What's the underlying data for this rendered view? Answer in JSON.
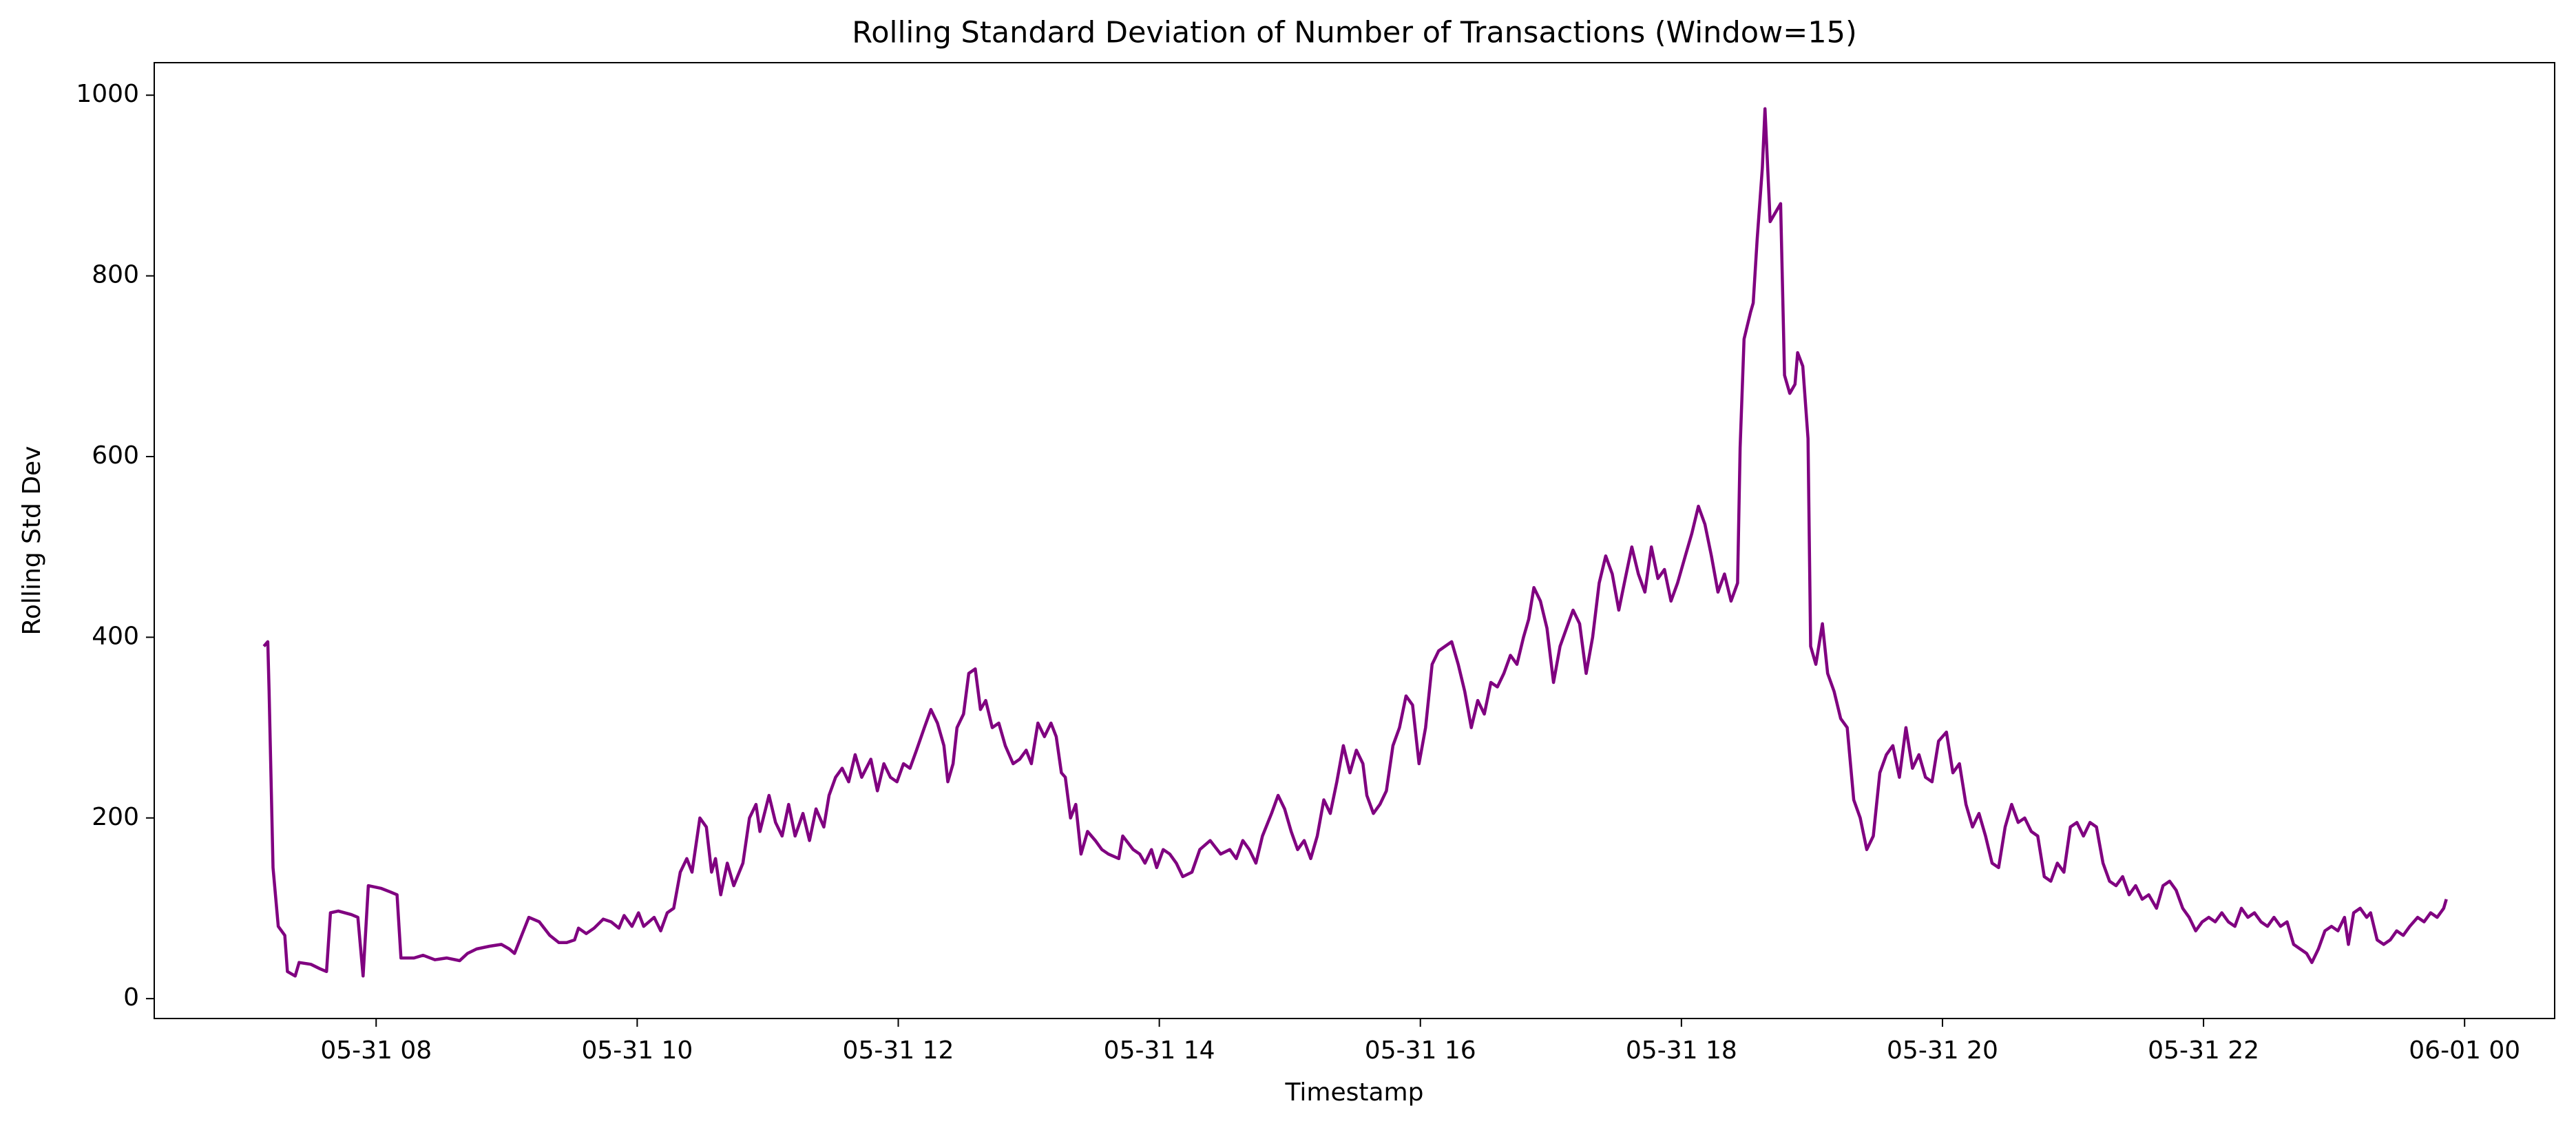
{
  "chart_data": {
    "type": "line",
    "title": "Rolling Standard Deviation of Number of Transactions (Window=15)",
    "x_label": "Timestamp",
    "y_label": "Rolling Std Dev",
    "color": "#800080",
    "grid": false,
    "xlim": [
      6.3,
      24.69
    ],
    "ylim": [
      -22,
      1036
    ],
    "xticks": [
      {
        "value": 8,
        "label": "05-31 08"
      },
      {
        "value": 10,
        "label": "05-31 10"
      },
      {
        "value": 12,
        "label": "05-31 12"
      },
      {
        "value": 14,
        "label": "05-31 14"
      },
      {
        "value": 16,
        "label": "05-31 16"
      },
      {
        "value": 18,
        "label": "05-31 18"
      },
      {
        "value": 20,
        "label": "05-31 20"
      },
      {
        "value": 22,
        "label": "05-31 22"
      },
      {
        "value": 24,
        "label": "06-01 00"
      }
    ],
    "yticks": [
      0,
      200,
      400,
      600,
      800,
      1000
    ],
    "x": [
      7.14,
      7.17,
      7.18,
      7.21,
      7.25,
      7.3,
      7.32,
      7.38,
      7.41,
      7.5,
      7.57,
      7.62,
      7.65,
      7.71,
      7.81,
      7.86,
      7.9,
      7.94,
      8.04,
      8.11,
      8.16,
      8.19,
      8.29,
      8.36,
      8.45,
      8.54,
      8.64,
      8.7,
      8.77,
      8.87,
      8.96,
      9.02,
      9.06,
      9.12,
      9.17,
      9.25,
      9.33,
      9.4,
      9.46,
      9.52,
      9.55,
      9.61,
      9.67,
      9.74,
      9.8,
      9.86,
      9.9,
      9.96,
      10.01,
      10.05,
      10.13,
      10.18,
      10.23,
      10.28,
      10.33,
      10.38,
      10.42,
      10.48,
      10.53,
      10.57,
      10.6,
      10.64,
      10.69,
      10.74,
      10.81,
      10.86,
      10.91,
      10.94,
      11.01,
      11.06,
      11.11,
      11.16,
      11.21,
      11.27,
      11.32,
      11.37,
      11.43,
      11.47,
      11.52,
      11.57,
      11.62,
      11.67,
      11.72,
      11.79,
      11.84,
      11.89,
      11.94,
      11.99,
      12.04,
      12.09,
      12.14,
      12.2,
      12.25,
      12.3,
      12.35,
      12.38,
      12.42,
      12.45,
      12.5,
      12.54,
      12.59,
      12.63,
      12.67,
      12.72,
      12.77,
      12.82,
      12.88,
      12.93,
      12.98,
      13.02,
      13.07,
      13.12,
      13.17,
      13.21,
      13.25,
      13.28,
      13.32,
      13.36,
      13.4,
      13.45,
      13.51,
      13.56,
      13.61,
      13.69,
      13.72,
      13.8,
      13.85,
      13.89,
      13.94,
      13.98,
      14.03,
      14.08,
      14.13,
      14.18,
      14.25,
      14.31,
      14.39,
      14.47,
      14.54,
      14.59,
      14.64,
      14.69,
      14.74,
      14.79,
      14.86,
      14.91,
      14.96,
      15.01,
      15.06,
      15.11,
      15.16,
      15.21,
      15.26,
      15.31,
      15.36,
      15.41,
      15.46,
      15.51,
      15.56,
      15.59,
      15.64,
      15.69,
      15.74,
      15.79,
      15.84,
      15.89,
      15.94,
      15.99,
      16.04,
      16.09,
      16.14,
      16.19,
      16.24,
      16.29,
      16.34,
      16.39,
      16.44,
      16.49,
      16.54,
      16.59,
      16.64,
      16.69,
      16.74,
      16.79,
      16.83,
      16.87,
      16.92,
      16.97,
      17.02,
      17.07,
      17.12,
      17.17,
      17.22,
      17.27,
      17.32,
      17.37,
      17.42,
      17.47,
      17.52,
      17.57,
      17.62,
      17.67,
      17.72,
      17.77,
      17.82,
      17.87,
      17.92,
      17.97,
      18.03,
      18.08,
      18.13,
      18.18,
      18.23,
      18.28,
      18.33,
      18.38,
      18.43,
      18.45,
      18.48,
      18.53,
      18.55,
      18.58,
      18.62,
      18.64,
      18.68,
      18.72,
      18.76,
      18.79,
      18.83,
      18.87,
      18.89,
      18.93,
      18.97,
      18.99,
      19.03,
      19.08,
      19.12,
      19.17,
      19.22,
      19.27,
      19.32,
      19.37,
      19.42,
      19.47,
      19.52,
      19.57,
      19.62,
      19.67,
      19.72,
      19.77,
      19.82,
      19.87,
      19.92,
      19.97,
      20.03,
      20.08,
      20.13,
      20.18,
      20.23,
      20.28,
      20.33,
      20.38,
      20.43,
      20.48,
      20.53,
      20.58,
      20.63,
      20.68,
      20.73,
      20.78,
      20.83,
      20.88,
      20.93,
      20.98,
      21.03,
      21.08,
      21.13,
      21.18,
      21.23,
      21.28,
      21.33,
      21.38,
      21.43,
      21.48,
      21.53,
      21.58,
      21.64,
      21.69,
      21.74,
      21.79,
      21.84,
      21.89,
      21.94,
      21.99,
      22.04,
      22.09,
      22.14,
      22.19,
      22.24,
      22.29,
      22.34,
      22.39,
      22.44,
      22.49,
      22.54,
      22.59,
      22.64,
      22.69,
      22.74,
      22.79,
      22.83,
      22.88,
      22.93,
      22.98,
      23.03,
      23.08,
      23.11,
      23.15,
      23.2,
      23.25,
      23.28,
      23.33,
      23.38,
      23.43,
      23.48,
      23.53,
      23.58,
      23.64,
      23.69,
      23.74,
      23.79,
      23.84,
      23.86
    ],
    "values": [
      390,
      395,
      340,
      145,
      80,
      70,
      30,
      25,
      40,
      38,
      33,
      30,
      95,
      97,
      93,
      90,
      25,
      125,
      122,
      118,
      115,
      45,
      45,
      48,
      43,
      45,
      42,
      50,
      55,
      58,
      60,
      55,
      50,
      72,
      90,
      85,
      70,
      62,
      62,
      65,
      78,
      72,
      78,
      88,
      85,
      78,
      92,
      80,
      95,
      80,
      90,
      75,
      95,
      100,
      140,
      155,
      140,
      200,
      190,
      140,
      155,
      115,
      150,
      125,
      150,
      200,
      215,
      185,
      225,
      195,
      180,
      215,
      180,
      205,
      175,
      210,
      190,
      225,
      245,
      255,
      240,
      270,
      245,
      265,
      230,
      260,
      245,
      240,
      260,
      255,
      275,
      300,
      320,
      305,
      280,
      240,
      260,
      300,
      315,
      360,
      365,
      320,
      330,
      300,
      305,
      280,
      260,
      265,
      275,
      260,
      305,
      290,
      305,
      290,
      250,
      245,
      200,
      215,
      160,
      185,
      175,
      165,
      160,
      155,
      180,
      165,
      160,
      150,
      165,
      145,
      165,
      160,
      150,
      135,
      140,
      165,
      175,
      160,
      165,
      155,
      175,
      165,
      150,
      180,
      205,
      225,
      210,
      185,
      165,
      175,
      155,
      180,
      220,
      205,
      240,
      280,
      250,
      275,
      260,
      225,
      205,
      215,
      230,
      280,
      300,
      335,
      325,
      260,
      300,
      370,
      385,
      390,
      395,
      370,
      340,
      300,
      330,
      315,
      350,
      345,
      360,
      380,
      370,
      400,
      420,
      455,
      440,
      410,
      350,
      390,
      410,
      430,
      415,
      360,
      400,
      460,
      490,
      470,
      430,
      465,
      500,
      470,
      450,
      500,
      465,
      475,
      440,
      460,
      490,
      515,
      545,
      525,
      490,
      450,
      470,
      440,
      460,
      610,
      730,
      760,
      770,
      840,
      920,
      985,
      860,
      870,
      880,
      690,
      670,
      680,
      715,
      700,
      620,
      390,
      370,
      415,
      360,
      340,
      310,
      300,
      220,
      200,
      165,
      180,
      250,
      270,
      280,
      245,
      300,
      255,
      270,
      245,
      240,
      285,
      295,
      250,
      260,
      215,
      190,
      205,
      180,
      150,
      145,
      190,
      215,
      195,
      200,
      185,
      180,
      135,
      130,
      150,
      140,
      190,
      195,
      180,
      195,
      190,
      150,
      130,
      125,
      135,
      115,
      125,
      110,
      115,
      100,
      125,
      130,
      120,
      100,
      90,
      75,
      85,
      90,
      85,
      95,
      85,
      80,
      100,
      90,
      95,
      85,
      80,
      90,
      80,
      85,
      60,
      55,
      50,
      40,
      55,
      75,
      80,
      75,
      90,
      60,
      95,
      100,
      90,
      95,
      65,
      60,
      65,
      75,
      70,
      80,
      90,
      85,
      95,
      90,
      100,
      110
    ]
  }
}
